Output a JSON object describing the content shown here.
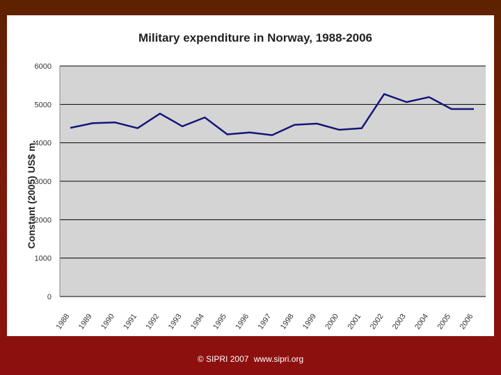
{
  "footer": {
    "copyright": "© SIPRI 2007",
    "url": "www.sipri.org"
  },
  "colors": {
    "line": "#14147a",
    "plot_bg": "#d4d4d4",
    "gridline": "#000000"
  },
  "chart_data": {
    "type": "line",
    "title": "Military expenditure in Norway, 1988-2006",
    "xlabel": "",
    "ylabel": "Constant (2005) US$ m.",
    "ylim": [
      0,
      6000
    ],
    "yticks": [
      0,
      1000,
      2000,
      3000,
      4000,
      5000,
      6000
    ],
    "grid": true,
    "categories": [
      "1988",
      "1989",
      "1990",
      "1991",
      "1992",
      "1993",
      "1994",
      "1995",
      "1996",
      "1997",
      "1998",
      "1999",
      "2000",
      "2001",
      "2002",
      "2003",
      "2004",
      "2005",
      "2006"
    ],
    "series": [
      {
        "values": [
          4390,
          4510,
          4530,
          4380,
          4760,
          4430,
          4660,
          4220,
          4270,
          4200,
          4470,
          4500,
          4340,
          4380,
          5270,
          5060,
          5190,
          4880,
          4880
        ]
      }
    ]
  }
}
